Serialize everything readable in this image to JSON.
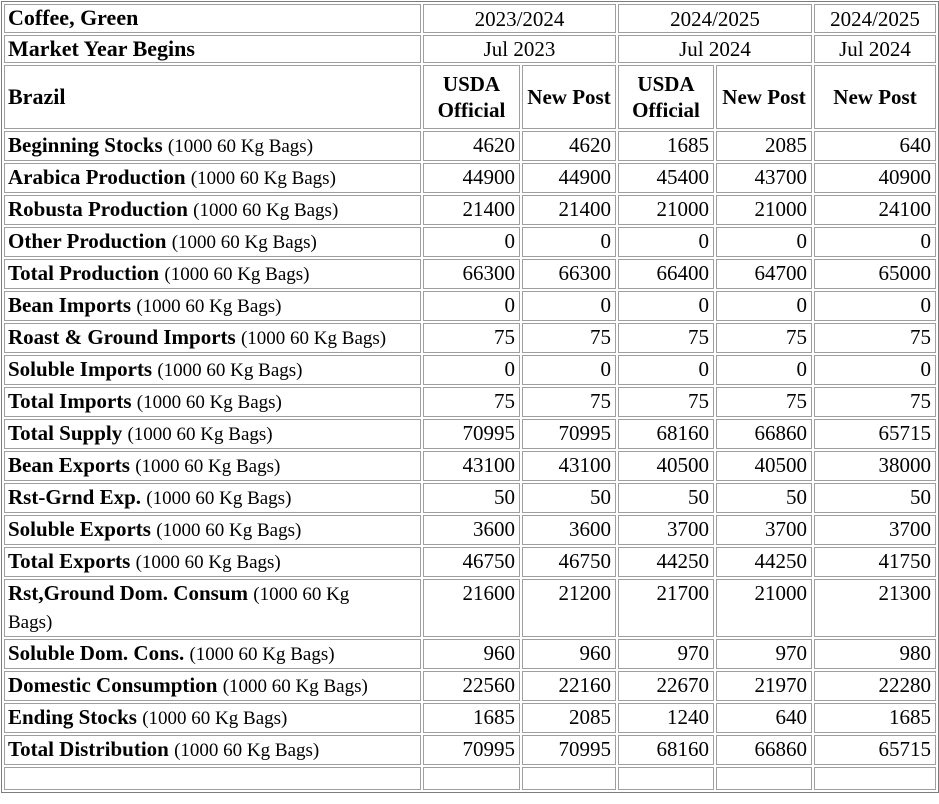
{
  "commodity": "Coffee, Green",
  "market_year_label": "Market Year Begins",
  "country": "Brazil",
  "unit": "(1000 60 Kg Bags)",
  "year_groups": [
    {
      "year": "2023/2024",
      "begins": "Jul 2023"
    },
    {
      "year": "2024/2025",
      "begins": "Jul 2024"
    },
    {
      "year": "2024/2025",
      "begins": "Jul 2024"
    }
  ],
  "column_headers": [
    "USDA Official",
    "New Post",
    "USDA Official",
    "New Post",
    "New Post"
  ],
  "rows": [
    {
      "attribute": "Beginning Stocks",
      "values": [
        4620,
        4620,
        1685,
        2085,
        640
      ]
    },
    {
      "attribute": "Arabica Production",
      "values": [
        44900,
        44900,
        45400,
        43700,
        40900
      ]
    },
    {
      "attribute": "Robusta Production",
      "values": [
        21400,
        21400,
        21000,
        21000,
        24100
      ]
    },
    {
      "attribute": "Other Production",
      "values": [
        0,
        0,
        0,
        0,
        0
      ]
    },
    {
      "attribute": "Total Production",
      "values": [
        66300,
        66300,
        66400,
        64700,
        65000
      ]
    },
    {
      "attribute": "Bean Imports",
      "values": [
        0,
        0,
        0,
        0,
        0
      ]
    },
    {
      "attribute": "Roast & Ground Imports",
      "values": [
        75,
        75,
        75,
        75,
        75
      ]
    },
    {
      "attribute": "Soluble Imports",
      "values": [
        0,
        0,
        0,
        0,
        0
      ]
    },
    {
      "attribute": "Total Imports",
      "values": [
        75,
        75,
        75,
        75,
        75
      ]
    },
    {
      "attribute": "Total Supply",
      "values": [
        70995,
        70995,
        68160,
        66860,
        65715
      ]
    },
    {
      "attribute": "Bean Exports",
      "values": [
        43100,
        43100,
        40500,
        40500,
        38000
      ]
    },
    {
      "attribute": "Rst-Grnd Exp.",
      "values": [
        50,
        50,
        50,
        50,
        50
      ]
    },
    {
      "attribute": "Soluble Exports",
      "values": [
        3600,
        3600,
        3700,
        3700,
        3700
      ]
    },
    {
      "attribute": "Total Exports",
      "values": [
        46750,
        46750,
        44250,
        44250,
        41750
      ]
    },
    {
      "attribute": "Rst,Ground Dom. Consum",
      "values": [
        21600,
        21200,
        21700,
        21000,
        21300
      ]
    },
    {
      "attribute": "Soluble Dom. Cons.",
      "values": [
        960,
        960,
        970,
        970,
        980
      ]
    },
    {
      "attribute": "Domestic Consumption",
      "values": [
        22560,
        22160,
        22670,
        21970,
        22280
      ]
    },
    {
      "attribute": "Ending Stocks",
      "values": [
        1685,
        2085,
        1240,
        640,
        1685
      ]
    },
    {
      "attribute": "Total Distribution",
      "values": [
        70995,
        70995,
        68160,
        66860,
        65715
      ]
    }
  ],
  "colors": {
    "border_outer": "#7d7d7d",
    "border_cell": "#9f9f9f",
    "text": "#000000",
    "background": "#ffffff"
  }
}
